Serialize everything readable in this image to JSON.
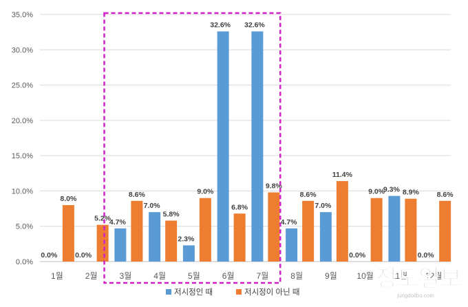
{
  "chart_data": {
    "type": "bar",
    "categories": [
      "1월",
      "2월",
      "3월",
      "4월",
      "5월",
      "6월",
      "7월",
      "8월",
      "9월",
      "10월",
      "11월",
      "12월"
    ],
    "series": [
      {
        "name": "저시정인 때",
        "values": [
          0.0,
          0.0,
          4.7,
          7.0,
          2.3,
          32.6,
          32.6,
          4.7,
          7.0,
          0.0,
          9.3,
          0.0
        ],
        "color": "#5b9bd5"
      },
      {
        "name": "저시정이 아닌 때",
        "values": [
          8.0,
          5.2,
          8.6,
          5.8,
          9.0,
          6.8,
          9.8,
          8.6,
          11.4,
          9.0,
          8.9,
          8.6
        ],
        "color": "#ed7d31"
      }
    ],
    "yticks": [
      "0.0%",
      "5.0%",
      "10.0%",
      "15.0%",
      "20.0%",
      "25.0%",
      "30.0%",
      "35.0%"
    ],
    "ylim": [
      0,
      35
    ],
    "grid": true,
    "legend_position": "bottom",
    "highlight": {
      "from_category": "3월",
      "to_category": "7월",
      "style": "dashed",
      "color": "#d020c8"
    },
    "watermark": {
      "text": "정도일보",
      "subtext": "jungdoilbo.com"
    }
  }
}
